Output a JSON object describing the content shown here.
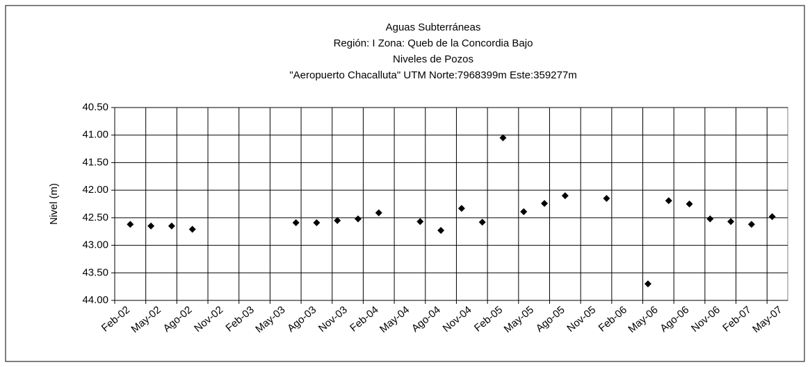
{
  "chart_data": {
    "type": "scatter",
    "title": [
      "Aguas Subterráneas",
      "Región: I  Zona: Queb de la Concordia Bajo",
      "Niveles de Pozos",
      "\"Aeropuerto Chacalluta\"  UTM Norte:7968399m   Este:359277m"
    ],
    "ylabel": "Nivel (m)",
    "x": [
      "2002-03",
      "2002-05",
      "2002-07",
      "2002-09",
      "2003-07",
      "2003-09",
      "2003-11",
      "2004-01",
      "2004-03",
      "2004-07",
      "2004-09",
      "2004-11",
      "2005-01",
      "2005-03",
      "2005-05",
      "2005-07",
      "2005-09",
      "2006-01",
      "2006-05",
      "2006-07",
      "2006-09",
      "2006-11",
      "2007-01",
      "2007-03",
      "2007-05"
    ],
    "values": [
      42.62,
      42.65,
      42.65,
      42.71,
      42.59,
      42.59,
      42.55,
      42.52,
      42.41,
      42.57,
      42.73,
      42.33,
      42.58,
      41.05,
      42.39,
      42.24,
      42.1,
      42.15,
      43.7,
      42.19,
      42.25,
      42.52,
      42.57,
      42.62,
      42.48
    ],
    "color": "#000000",
    "xlim": [
      "2002-02",
      "2007-06"
    ],
    "xticks": [
      {
        "value": "2002-02",
        "label": "Feb-02"
      },
      {
        "value": "2002-05",
        "label": "May-02"
      },
      {
        "value": "2002-08",
        "label": "Ago-02"
      },
      {
        "value": "2002-11",
        "label": "Nov-02"
      },
      {
        "value": "2003-02",
        "label": "Feb-03"
      },
      {
        "value": "2003-05",
        "label": "May-03"
      },
      {
        "value": "2003-08",
        "label": "Ago-03"
      },
      {
        "value": "2003-11",
        "label": "Nov-03"
      },
      {
        "value": "2004-02",
        "label": "Feb-04"
      },
      {
        "value": "2004-05",
        "label": "May-04"
      },
      {
        "value": "2004-08",
        "label": "Ago-04"
      },
      {
        "value": "2004-11",
        "label": "Nov-04"
      },
      {
        "value": "2005-02",
        "label": "Feb-05"
      },
      {
        "value": "2005-05",
        "label": "May-05"
      },
      {
        "value": "2005-08",
        "label": "Ago-05"
      },
      {
        "value": "2005-11",
        "label": "Nov-05"
      },
      {
        "value": "2006-02",
        "label": "Feb-06"
      },
      {
        "value": "2006-05",
        "label": "May-06"
      },
      {
        "value": "2006-08",
        "label": "Ago-06"
      },
      {
        "value": "2006-11",
        "label": "Nov-06"
      },
      {
        "value": "2007-02",
        "label": "Feb-07"
      },
      {
        "value": "2007-05",
        "label": "May-07"
      }
    ],
    "ylim": [
      40.5,
      44.0
    ],
    "yticks": [
      {
        "value": 40.5,
        "label": "40.50"
      },
      {
        "value": 41.0,
        "label": "41.00"
      },
      {
        "value": 41.5,
        "label": "41.50"
      },
      {
        "value": 42.0,
        "label": "42.00"
      },
      {
        "value": 42.5,
        "label": "42.50"
      },
      {
        "value": 43.0,
        "label": "43.00"
      },
      {
        "value": 43.5,
        "label": "43.50"
      },
      {
        "value": 44.0,
        "label": "44.00"
      }
    ],
    "y_inverted": true,
    "grid": true
  }
}
